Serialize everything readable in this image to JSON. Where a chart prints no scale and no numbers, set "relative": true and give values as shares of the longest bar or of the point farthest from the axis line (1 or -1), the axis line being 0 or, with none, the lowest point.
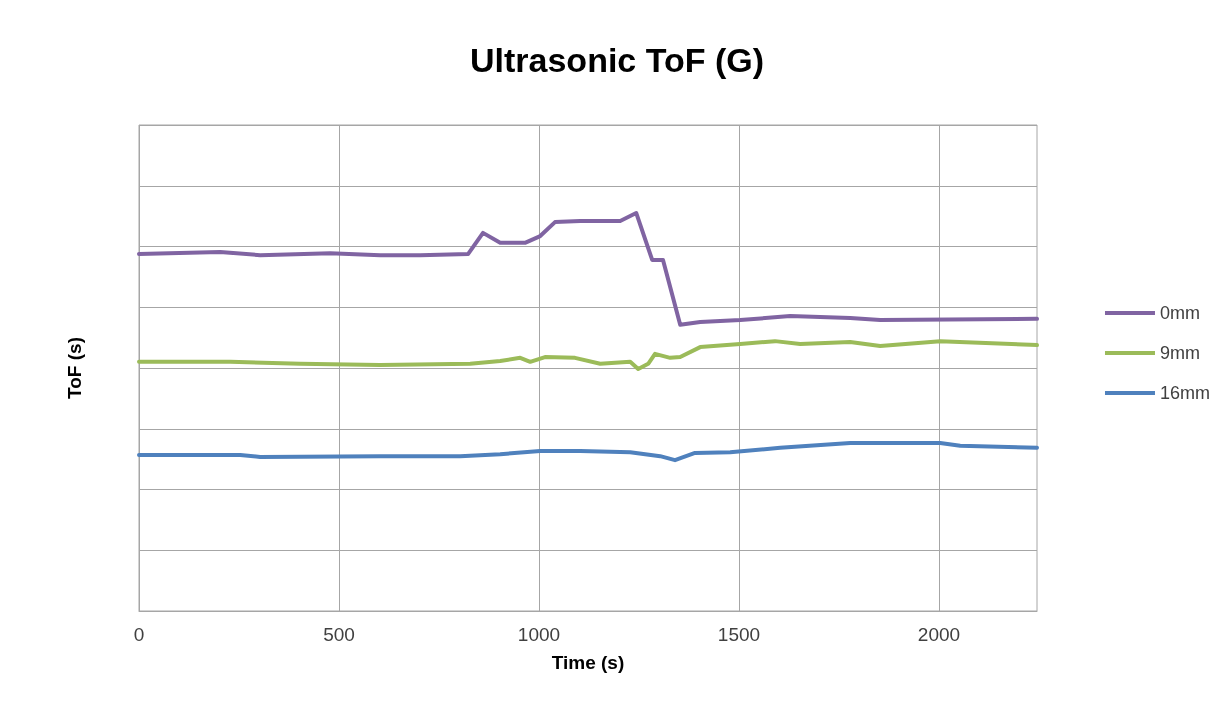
{
  "chart_data": {
    "type": "line",
    "title": "Ultrasonic ToF (G)",
    "xlabel": "Time (s)",
    "ylabel": "ToF (s)",
    "relative": true,
    "xlim": [
      0,
      2245
    ],
    "xticks": [
      0,
      500,
      1000,
      1500,
      2000
    ],
    "grid": true,
    "legend": "right",
    "marker": "none",
    "line_style": "solid",
    "series": [
      {
        "name": "0mm",
        "color": "#8064a2",
        "x": [
          0,
          203,
          303,
          478,
          603,
          703,
          823,
          860,
          903,
          965,
          1003,
          1040,
          1103,
          1203,
          1243,
          1283,
          1310,
          1353,
          1403,
          1503,
          1628,
          1778,
          1853,
          2245
        ],
        "values": [
          0.897,
          0.902,
          0.894,
          0.899,
          0.894,
          0.894,
          0.897,
          0.95,
          0.925,
          0.925,
          0.942,
          0.977,
          0.98,
          0.98,
          1.0,
          0.882,
          0.882,
          0.719,
          0.726,
          0.731,
          0.741,
          0.736,
          0.731,
          0.734
        ]
      },
      {
        "name": "9mm",
        "color": "#9bbb59",
        "x": [
          0,
          228,
          403,
          603,
          828,
          903,
          953,
          978,
          1015,
          1090,
          1153,
          1228,
          1248,
          1273,
          1290,
          1328,
          1353,
          1403,
          1503,
          1590,
          1653,
          1778,
          1853,
          2003,
          2245
        ],
        "values": [
          0.626,
          0.626,
          0.621,
          0.618,
          0.621,
          0.628,
          0.636,
          0.626,
          0.638,
          0.636,
          0.621,
          0.626,
          0.608,
          0.621,
          0.646,
          0.636,
          0.638,
          0.663,
          0.671,
          0.678,
          0.671,
          0.676,
          0.666,
          0.678,
          0.668
        ]
      },
      {
        "name": "16mm",
        "color": "#4f81bd",
        "x": [
          0,
          253,
          303,
          603,
          803,
          903,
          1003,
          1103,
          1228,
          1303,
          1340,
          1390,
          1478,
          1603,
          1778,
          1853,
          2003,
          2053,
          2245
        ],
        "values": [
          0.392,
          0.392,
          0.387,
          0.389,
          0.389,
          0.394,
          0.402,
          0.402,
          0.399,
          0.389,
          0.379,
          0.397,
          0.399,
          0.41,
          0.422,
          0.422,
          0.422,
          0.415,
          0.41
        ]
      }
    ]
  }
}
